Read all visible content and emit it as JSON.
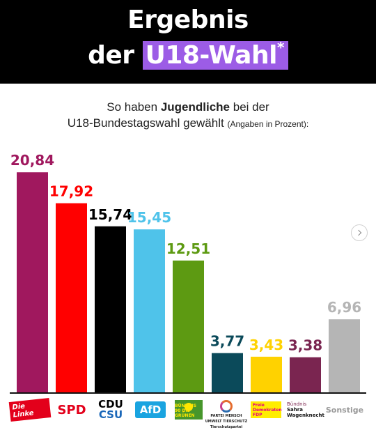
{
  "header": {
    "line1": "Ergebnis",
    "line2_prefix": "der",
    "line2_highlight": "U18-Wahl",
    "asterisk": "*",
    "colors": {
      "background": "#000000",
      "highlight": "#9c5ce6",
      "text": "#ffffff"
    }
  },
  "subtitle": {
    "part1": "So haben",
    "bold": "Jugendliche",
    "part2": "bei der",
    "line2": "U18-Bundestagswahl gewählt",
    "note": "(Angaben in Prozent):"
  },
  "chart_data": {
    "type": "bar",
    "title": "",
    "xlabel": "",
    "ylabel": "",
    "ylim": [
      0,
      22
    ],
    "grid": false,
    "categories": [
      "Die Linke",
      "SPD",
      "CDU CSU",
      "AfD",
      "Bündnis 90 Die Grünen",
      "Partei Mensch Umwelt Tierschutz",
      "Freie Demokraten FDP",
      "Bündnis Sahra Wagenknecht",
      "Sonstige"
    ],
    "values": [
      20.84,
      17.92,
      15.74,
      15.45,
      12.51,
      3.77,
      3.43,
      3.38,
      6.96
    ],
    "value_labels": [
      "20,84",
      "17,92",
      "15,74",
      "15,45",
      "12,51",
      "3,77",
      "3,43",
      "3,38",
      "6,96"
    ],
    "colors": [
      "#a0185e",
      "#ff0000",
      "#000000",
      "#4fc3ea",
      "#5d9a12",
      "#0b4a5a",
      "#ffd200",
      "#7a2550",
      "#b5b5b5"
    ]
  },
  "logos": {
    "linke": "Die Linke",
    "spd": "SPD",
    "cdu": "CDU",
    "csu": "CSU",
    "afd": "AfD",
    "gruene": "BÜNDNIS 90 DIE GRÜNEN",
    "tierschutz_1": "PARTEI MENSCH",
    "tierschutz_2": "UMWELT TIERSCHUTZ",
    "tierschutz_3": "Tierschutzpartei",
    "fdp_1": "Freie",
    "fdp_2": "Demokraten",
    "fdp_3": "FDP",
    "bsw_1": "Bündnis",
    "bsw_2": "Sahra",
    "bsw_3": "Wagenknecht",
    "sonstige": "Sonstige"
  },
  "icons": {
    "next": "chevron-right-icon"
  }
}
